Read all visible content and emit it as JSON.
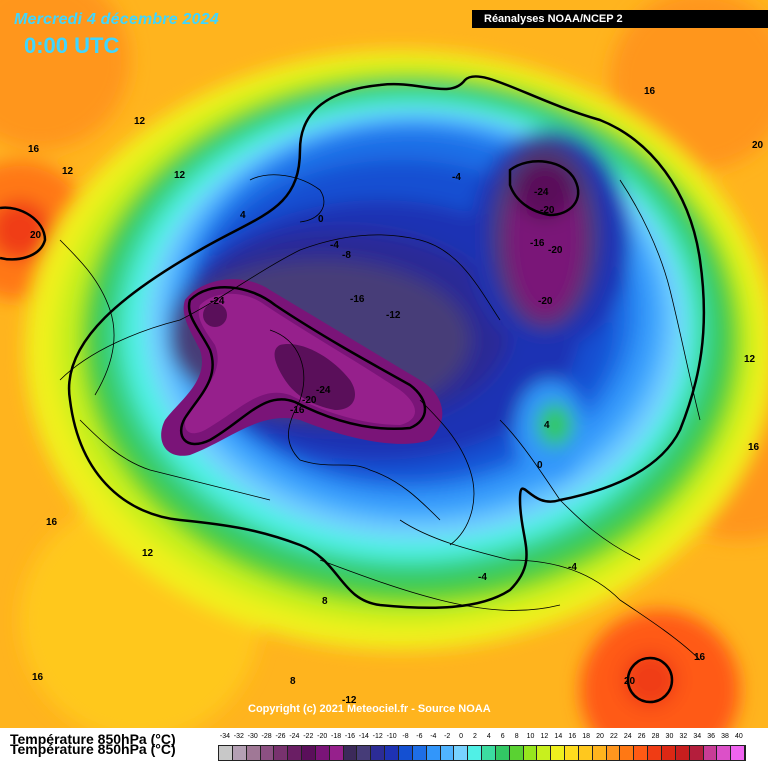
{
  "header": {
    "date_title": "Mercredi 4 décembre 2024",
    "time_title": "0:00 UTC",
    "source": "Réanalyses NOAA/NCEP 2"
  },
  "copyright": "Copyright (c) 2021 Meteociel.fr - Source NOAA",
  "legend": {
    "title": "Température 850hPa (°C)",
    "ticks": [
      "-34",
      "-32",
      "-30",
      "-28",
      "-26",
      "-24",
      "-22",
      "-20",
      "-18",
      "-16",
      "-14",
      "-12",
      "-10",
      "-8",
      "-6",
      "-4",
      "-2",
      "0",
      "2",
      "4",
      "6",
      "8",
      "10",
      "12",
      "14",
      "16",
      "18",
      "20",
      "22",
      "24",
      "26",
      "28",
      "30",
      "32",
      "34",
      "36",
      "38",
      "40"
    ],
    "colors": [
      "#c8c8c8",
      "#b4a0b4",
      "#a07896",
      "#8c5082",
      "#78326e",
      "#6a1e64",
      "#5a0f5a",
      "#7a1478",
      "#96208c",
      "#3c2a5a",
      "#463c78",
      "#2c2c96",
      "#1e32b4",
      "#1450d2",
      "#1e6ee6",
      "#3296fa",
      "#50b4ff",
      "#78d2ff",
      "#50f0e6",
      "#3cdca0",
      "#32c864",
      "#5ad232",
      "#96e61e",
      "#c8f01e",
      "#f0f01e",
      "#ffdc1e",
      "#ffc81e",
      "#ffb41e",
      "#ff961e",
      "#ff7814",
      "#ff5a14",
      "#f03c14",
      "#dc2814",
      "#c81e1e",
      "#b41e3c",
      "#c83c96",
      "#dc50c8",
      "#f064f0"
    ]
  },
  "map": {
    "contour_labels": [
      "12",
      "16",
      "12",
      "12",
      "20",
      "4",
      "0",
      "-4",
      "-8",
      "-4",
      "-16",
      "-12",
      "-24",
      "-24",
      "-20",
      "-16",
      "-20",
      "-20",
      "-24",
      "-20",
      "-16",
      "4",
      "0",
      "16",
      "12",
      "8",
      "16",
      "8",
      "-12",
      "-4",
      "-4",
      "16",
      "20",
      "20",
      "16",
      "12",
      "16",
      "20"
    ]
  }
}
